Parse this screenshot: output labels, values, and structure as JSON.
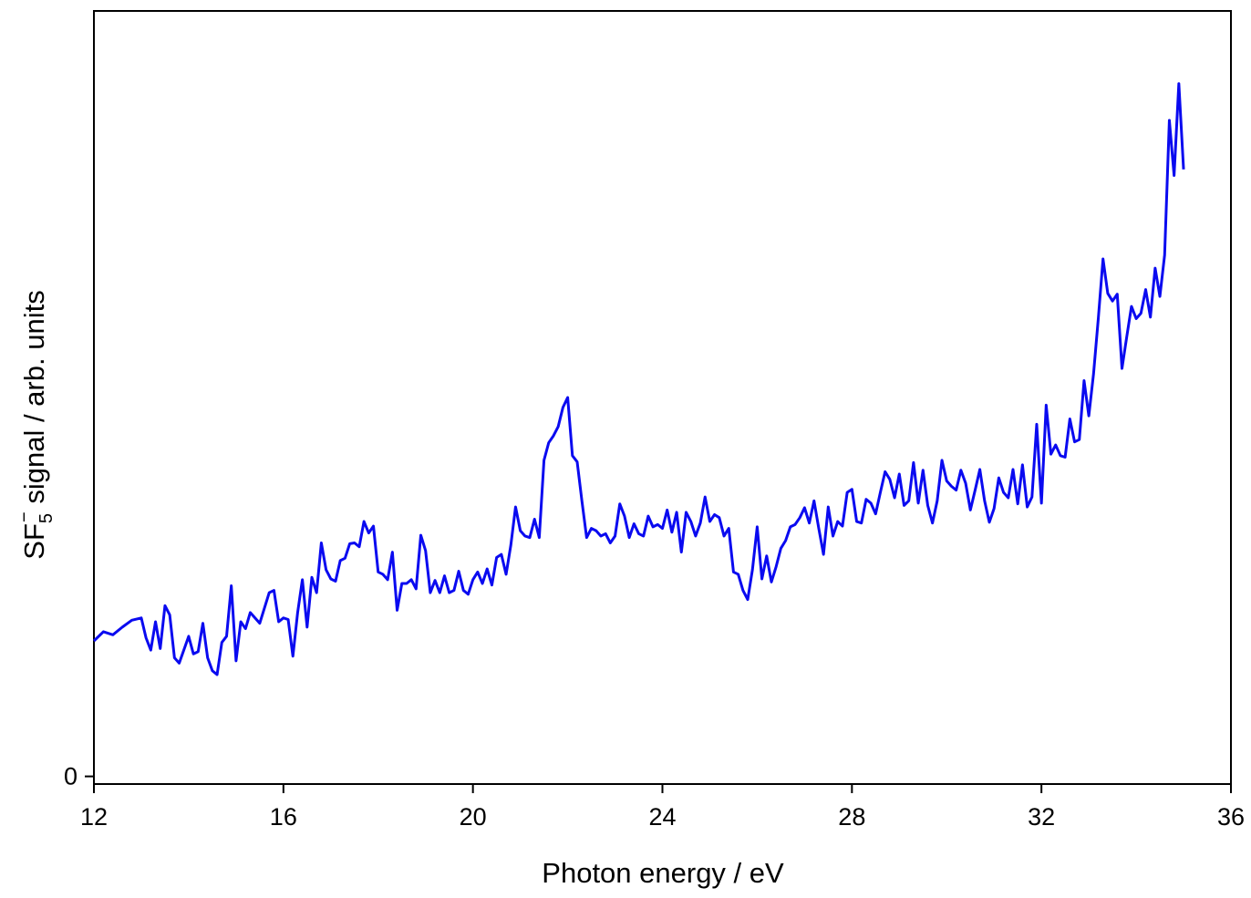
{
  "chart_data": {
    "type": "line",
    "xlabel": "Photon energy / eV",
    "ylabel": {
      "main": "SF",
      "sub": "5",
      "sup": "−",
      "rest": " signal / arb. units"
    },
    "x": [
      12.0,
      12.2,
      12.4,
      12.6,
      12.8,
      13.0,
      13.1,
      13.2,
      13.3,
      13.4,
      13.5,
      13.6,
      13.7,
      13.8,
      14.0,
      14.1,
      14.2,
      14.3,
      14.4,
      14.5,
      14.6,
      14.7,
      14.8,
      14.9,
      15.0,
      15.1,
      15.2,
      15.3,
      15.5,
      15.7,
      15.8,
      15.9,
      16.0,
      16.1,
      16.2,
      16.3,
      16.4,
      16.5,
      16.6,
      16.7,
      16.8,
      16.9,
      17.0,
      17.1,
      17.2,
      17.3,
      17.4,
      17.5,
      17.6,
      17.7,
      17.8,
      17.9,
      18.0,
      18.1,
      18.2,
      18.3,
      18.4,
      18.5,
      18.6,
      18.7,
      18.8,
      18.9,
      19.0,
      19.1,
      19.2,
      19.3,
      19.4,
      19.5,
      19.6,
      19.7,
      19.8,
      19.9,
      20.0,
      20.1,
      20.2,
      20.3,
      20.4,
      20.5,
      20.6,
      20.7,
      20.8,
      20.9,
      21.0,
      21.1,
      21.2,
      21.3,
      21.4,
      21.5,
      21.6,
      21.7,
      21.8,
      21.9,
      22.0,
      22.1,
      22.2,
      22.3,
      22.4,
      22.5,
      22.6,
      22.7,
      22.8,
      22.9,
      23.0,
      23.1,
      23.2,
      23.3,
      23.4,
      23.5,
      23.6,
      23.7,
      23.8,
      23.9,
      24.0,
      24.1,
      24.2,
      24.3,
      24.4,
      24.5,
      24.6,
      24.7,
      24.8,
      24.9,
      25.0,
      25.1,
      25.2,
      25.3,
      25.4,
      25.5,
      25.6,
      25.7,
      25.8,
      25.9,
      26.0,
      26.1,
      26.2,
      26.3,
      26.4,
      26.5,
      26.6,
      26.7,
      26.8,
      26.9,
      27.0,
      27.1,
      27.2,
      27.3,
      27.4,
      27.5,
      27.6,
      27.7,
      27.8,
      27.9,
      28.0,
      28.1,
      28.2,
      28.3,
      28.4,
      28.5,
      28.6,
      28.7,
      28.8,
      28.9,
      29.0,
      29.1,
      29.2,
      29.3,
      29.4,
      29.5,
      29.6,
      29.7,
      29.8,
      29.9,
      30.0,
      30.1,
      30.2,
      30.3,
      30.4,
      30.5,
      30.6,
      30.7,
      30.8,
      30.9,
      31.0,
      31.1,
      31.2,
      31.3,
      31.4,
      31.5,
      31.6,
      31.7,
      31.8,
      31.9,
      32.0,
      32.1,
      32.2,
      32.3,
      32.4,
      32.5,
      32.6,
      32.7,
      32.8,
      32.9,
      33.0,
      33.1,
      33.2,
      33.3,
      33.4,
      33.5,
      33.6,
      33.7,
      33.8,
      33.9,
      34.0,
      34.1,
      34.2,
      34.3,
      34.4,
      34.5,
      34.6,
      34.7,
      34.8,
      34.9,
      35.0
    ],
    "values": [
      1.77,
      1.89,
      1.85,
      1.95,
      2.04,
      2.07,
      1.81,
      1.65,
      2.02,
      1.67,
      2.23,
      2.11,
      1.55,
      1.48,
      1.83,
      1.6,
      1.63,
      2.0,
      1.55,
      1.38,
      1.33,
      1.75,
      1.83,
      2.49,
      1.51,
      2.02,
      1.93,
      2.14,
      2.0,
      2.4,
      2.43,
      2.02,
      2.07,
      2.05,
      1.57,
      2.14,
      2.57,
      1.95,
      2.6,
      2.4,
      3.05,
      2.7,
      2.58,
      2.55,
      2.82,
      2.85,
      3.04,
      3.05,
      3.0,
      3.33,
      3.18,
      3.27,
      2.67,
      2.64,
      2.57,
      2.93,
      2.17,
      2.52,
      2.52,
      2.57,
      2.45,
      3.15,
      2.95,
      2.4,
      2.56,
      2.4,
      2.62,
      2.4,
      2.43,
      2.68,
      2.43,
      2.38,
      2.57,
      2.67,
      2.52,
      2.71,
      2.5,
      2.86,
      2.9,
      2.64,
      3.02,
      3.52,
      3.21,
      3.14,
      3.12,
      3.36,
      3.12,
      4.13,
      4.36,
      4.45,
      4.57,
      4.82,
      4.95,
      4.19,
      4.11,
      3.6,
      3.12,
      3.24,
      3.21,
      3.14,
      3.17,
      3.05,
      3.14,
      3.56,
      3.4,
      3.12,
      3.3,
      3.17,
      3.14,
      3.4,
      3.26,
      3.29,
      3.24,
      3.48,
      3.19,
      3.45,
      2.93,
      3.45,
      3.33,
      3.14,
      3.31,
      3.65,
      3.33,
      3.42,
      3.38,
      3.14,
      3.24,
      2.67,
      2.64,
      2.43,
      2.31,
      2.7,
      3.26,
      2.58,
      2.88,
      2.54,
      2.74,
      2.98,
      3.08,
      3.26,
      3.29,
      3.38,
      3.51,
      3.31,
      3.6,
      3.24,
      2.9,
      3.52,
      3.14,
      3.33,
      3.27,
      3.71,
      3.75,
      3.33,
      3.31,
      3.62,
      3.57,
      3.43,
      3.71,
      3.98,
      3.88,
      3.64,
      3.95,
      3.54,
      3.6,
      4.1,
      3.57,
      4.0,
      3.54,
      3.31,
      3.6,
      4.13,
      3.86,
      3.79,
      3.74,
      4.0,
      3.83,
      3.48,
      3.74,
      4.01,
      3.6,
      3.32,
      3.5,
      3.9,
      3.71,
      3.64,
      4.01,
      3.56,
      4.07,
      3.52,
      3.65,
      4.6,
      3.57,
      4.85,
      4.21,
      4.33,
      4.19,
      4.17,
      4.67,
      4.37,
      4.4,
      5.17,
      4.71,
      5.26,
      5.98,
      6.76,
      6.31,
      6.21,
      6.3,
      5.33,
      5.74,
      6.14,
      5.98,
      6.05,
      6.36,
      6.0,
      6.64,
      6.27,
      6.81,
      8.57,
      7.85,
      9.05,
      7.93
    ],
    "color": "#0a0af0",
    "xlim": [
      12,
      36
    ],
    "xticks": [
      12,
      16,
      20,
      24,
      28,
      32,
      36
    ],
    "ylim": [
      -0.1,
      10
    ],
    "yticks": [
      0
    ]
  }
}
